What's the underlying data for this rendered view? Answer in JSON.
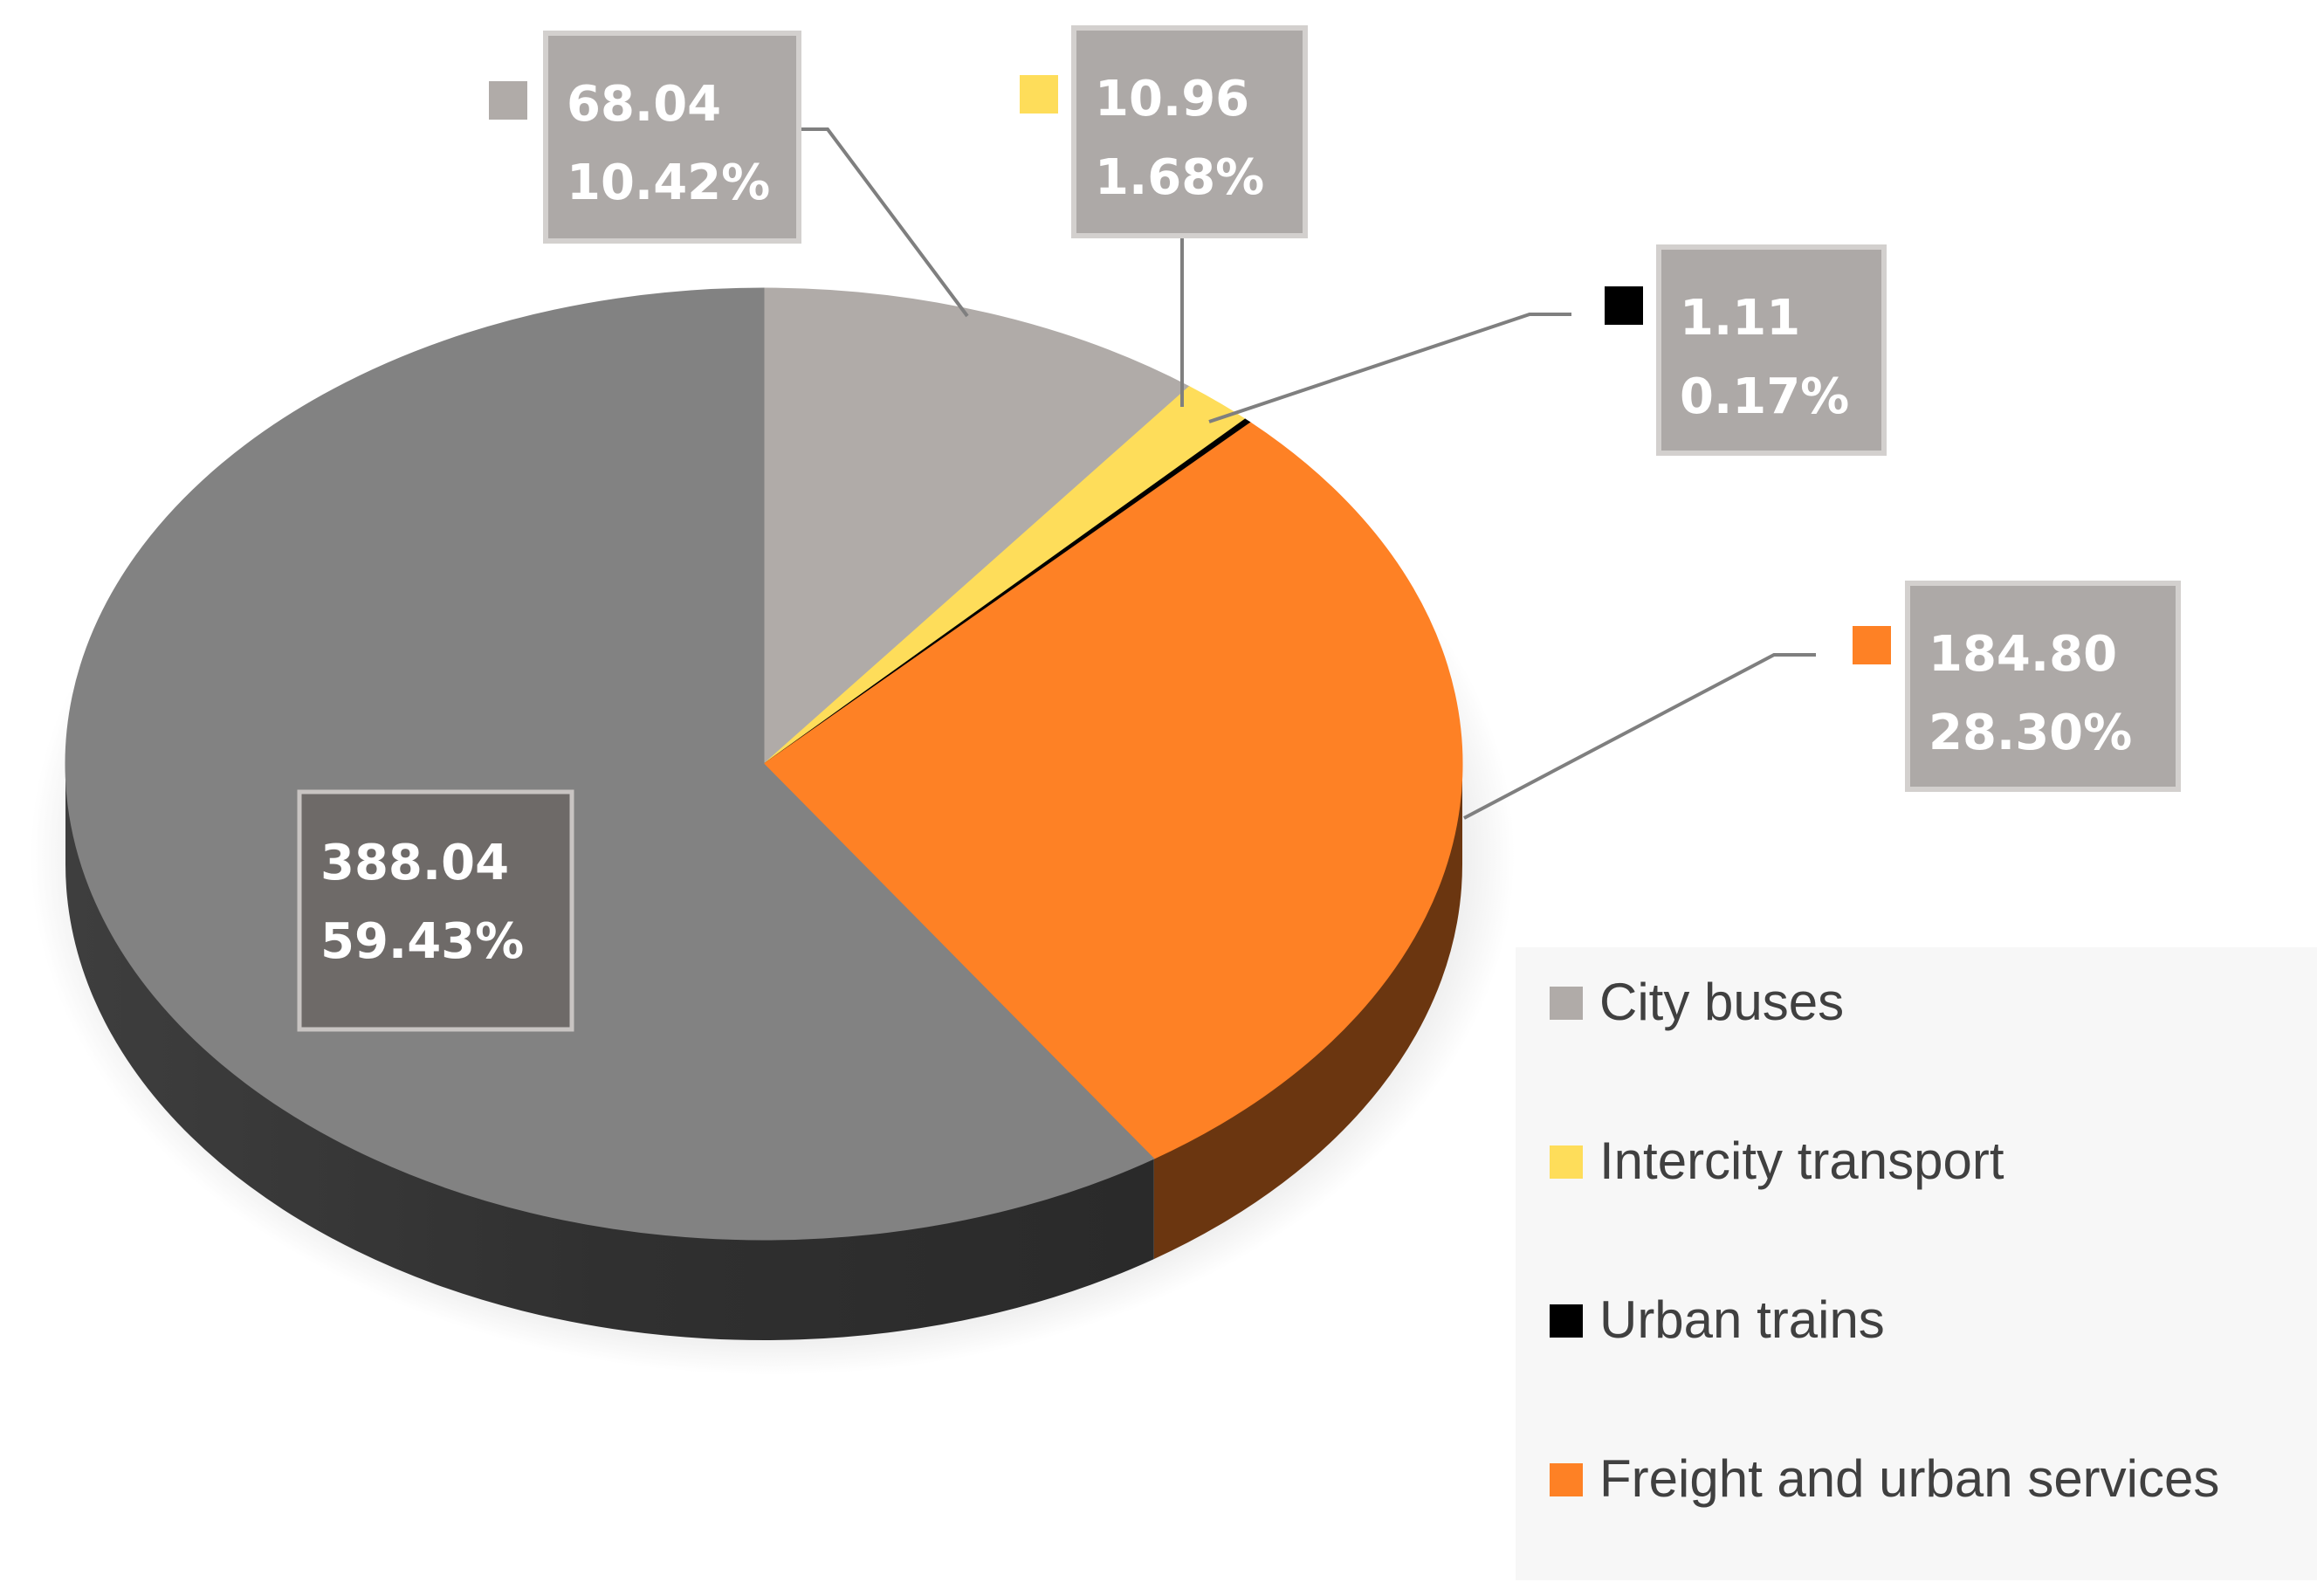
{
  "chart_data": {
    "type": "pie",
    "style": "3d",
    "legend_position": "right",
    "series": [
      {
        "name": "City buses",
        "value": 68.04,
        "value_label": "68.04",
        "percent_label": "10.42%",
        "color": "#b0aba8"
      },
      {
        "name": "Intercity transport",
        "value": 10.96,
        "value_label": "10.96",
        "percent_label": "1.68%",
        "color": "#fedd5a"
      },
      {
        "name": "Urban trains",
        "value": 1.11,
        "value_label": "1.11",
        "percent_label": "0.17%",
        "color": "#000000"
      },
      {
        "name": "Freight and urban services",
        "value": 184.8,
        "value_label": "184.80",
        "percent_label": "28.30%",
        "color": "#fe8125"
      },
      {
        "name": "",
        "value": 388.04,
        "value_label": "388.04",
        "percent_label": "59.43%",
        "color": "#828282"
      }
    ]
  }
}
